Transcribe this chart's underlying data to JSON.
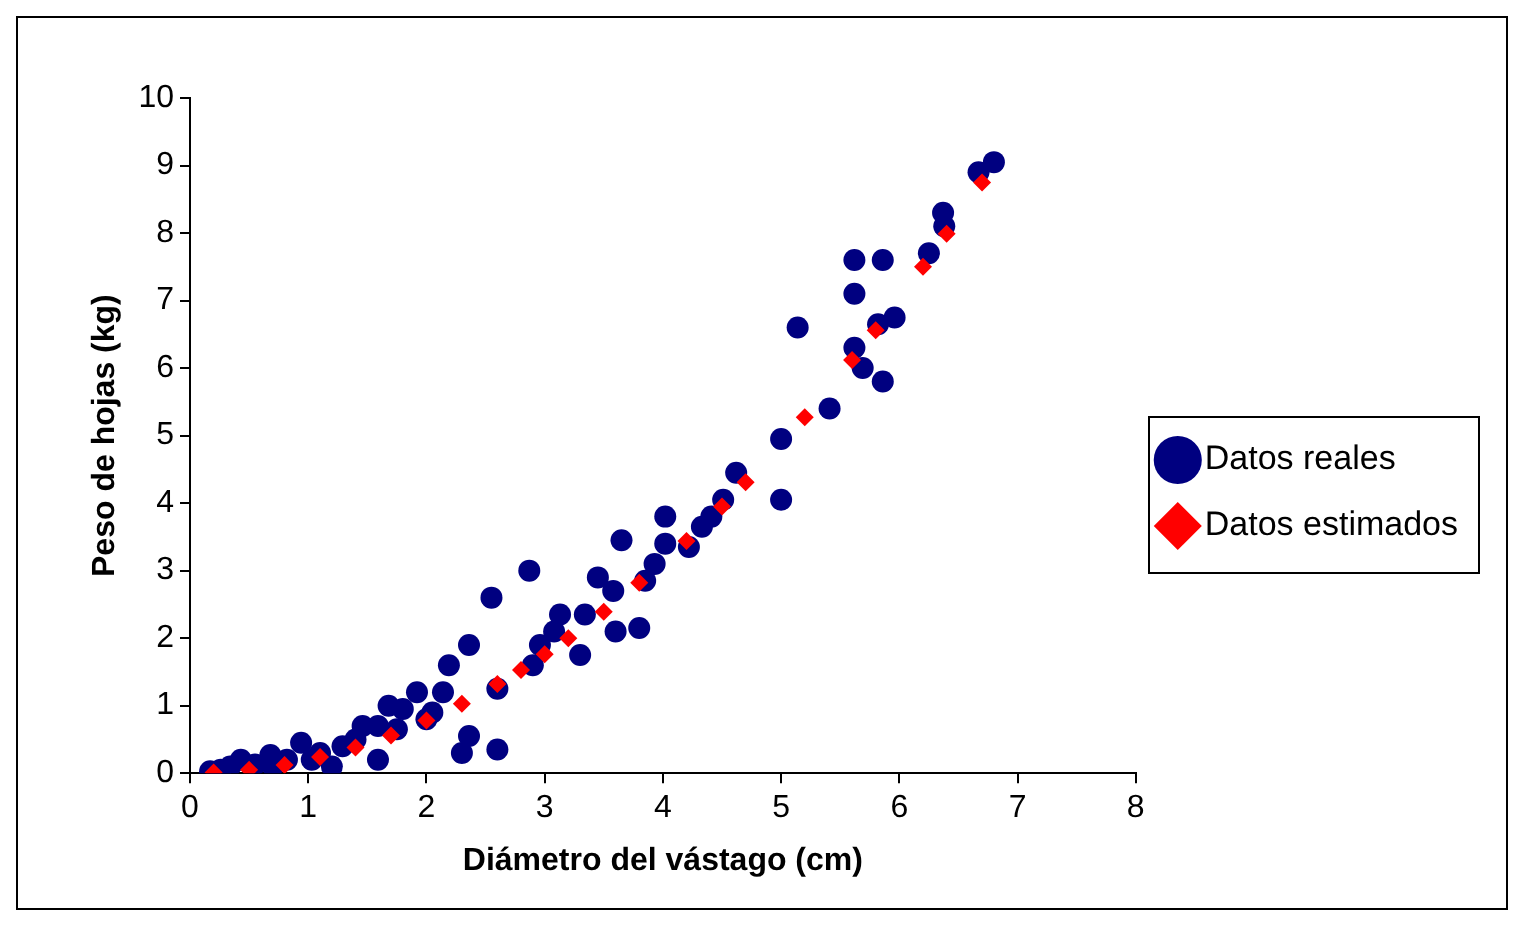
{
  "chart_data": {
    "type": "scatter",
    "xlabel": "Diámetro del vástago (cm)",
    "ylabel": "Peso de hojas (kg)",
    "xlim": [
      0,
      8
    ],
    "xticks": [
      0,
      1,
      2,
      3,
      4,
      5,
      6,
      7,
      8
    ],
    "ylim": [
      0,
      10
    ],
    "yticks": [
      0,
      1,
      2,
      3,
      4,
      5,
      6,
      7,
      8,
      9,
      10
    ],
    "grid": false,
    "legend": "right",
    "series": [
      {
        "name": "Datos reales",
        "color": "#000080",
        "marker": "circle",
        "x": [
          6.8,
          6.67,
          6.37,
          6.38,
          6.25,
          5.96,
          5.82,
          5.62,
          5.86,
          5.62,
          5.14,
          5.62,
          5.69,
          5.86,
          5.41,
          5.0,
          5.0,
          4.62,
          4.51,
          4.41,
          4.33,
          4.22,
          4.02,
          4.02,
          3.93,
          3.85,
          3.8,
          3.65,
          3.58,
          3.6,
          3.45,
          3.34,
          3.3,
          3.13,
          3.08,
          2.96,
          2.87,
          2.9,
          2.55,
          2.6,
          2.6,
          2.36,
          2.36,
          2.3,
          2.19,
          2.14,
          2.05,
          1.92,
          1.8,
          1.68,
          1.59,
          1.59,
          1.46,
          1.29,
          1.2,
          1.03,
          0.94,
          0.82,
          0.68,
          0.55,
          0.43,
          0.34,
          0.26,
          0.17,
          1.1,
          1.4,
          1.75,
          2.0,
          0.7
        ],
        "values": [
          9.05,
          8.9,
          8.3,
          8.1,
          7.7,
          6.75,
          6.65,
          7.6,
          7.6,
          7.1,
          6.6,
          6.3,
          6.0,
          5.8,
          5.4,
          4.05,
          4.95,
          4.45,
          4.05,
          3.8,
          3.65,
          3.35,
          3.8,
          3.4,
          3.1,
          2.85,
          2.15,
          3.45,
          2.7,
          2.1,
          2.9,
          2.35,
          1.75,
          2.35,
          2.1,
          1.9,
          3.0,
          1.6,
          2.6,
          1.25,
          0.35,
          1.9,
          0.55,
          0.3,
          1.6,
          1.2,
          0.9,
          1.2,
          0.95,
          1.0,
          0.7,
          0.2,
          0.7,
          0.4,
          0.1,
          0.2,
          0.45,
          0.2,
          0.27,
          0.13,
          0.2,
          0.1,
          0.05,
          0.03,
          0.3,
          0.5,
          0.65,
          0.8,
          0.1
        ]
      },
      {
        "name": "Datos estimados",
        "color": "#ff0000",
        "marker": "diamond",
        "x": [
          0.2,
          0.5,
          0.8,
          1.1,
          1.4,
          1.7,
          2.0,
          2.3,
          2.6,
          2.8,
          3.0,
          3.2,
          3.5,
          3.8,
          4.2,
          4.5,
          4.7,
          5.2,
          5.6,
          5.8,
          6.2,
          6.4,
          6.7
        ],
        "values": [
          0.01,
          0.05,
          0.12,
          0.24,
          0.38,
          0.56,
          0.78,
          1.03,
          1.32,
          1.53,
          1.76,
          2.0,
          2.39,
          2.82,
          3.44,
          3.95,
          4.31,
          5.27,
          6.12,
          6.56,
          7.5,
          7.99,
          8.75
        ]
      }
    ]
  }
}
